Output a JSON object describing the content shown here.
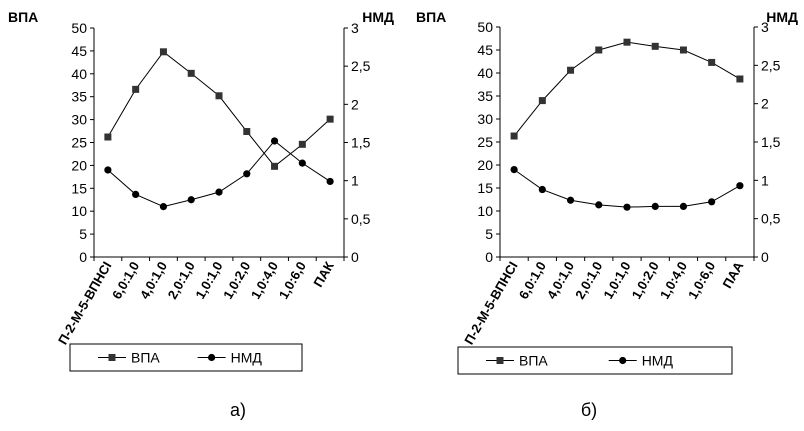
{
  "chart_data": [
    {
      "type": "line",
      "panel_label": "а)",
      "left_axis_title": "ВПА",
      "right_axis_title": "НМД",
      "categories": [
        "П-2-М-5-ВПНСI",
        "6,0:1,0",
        "4,0:1,0",
        "2,0:1,0",
        "1,0:1,0",
        "1,0:2,0",
        "1,0:4,0",
        "1,0:6,0",
        "ПАК"
      ],
      "left_ylim": [
        0,
        50
      ],
      "left_ticks": [
        "0",
        "5",
        "10",
        "15",
        "20",
        "25",
        "30",
        "35",
        "40",
        "45",
        "50"
      ],
      "right_ylim": [
        0,
        3
      ],
      "right_ticks": [
        "0",
        "0,5",
        "1",
        "1,5",
        "2",
        "2,5",
        "3"
      ],
      "grid": false,
      "legend_position": "bottom",
      "series": [
        {
          "name": "ВПА",
          "axis": "left",
          "marker": "square",
          "values": [
            26.2,
            36.6,
            44.8,
            40.1,
            35.2,
            27.4,
            19.8,
            24.6,
            30.1
          ]
        },
        {
          "name": "НМД",
          "axis": "right",
          "marker": "circle",
          "values": [
            1.14,
            0.82,
            0.66,
            0.75,
            0.85,
            1.09,
            1.52,
            1.23,
            0.99
          ]
        }
      ]
    },
    {
      "type": "line",
      "panel_label": "б)",
      "left_axis_title": "ВПА",
      "right_axis_title": "НМД",
      "categories": [
        "П-2-М-5-ВПНСI",
        "6,0:1,0",
        "4,0:1,0",
        "2,0:1,0",
        "1,0:1,0",
        "1,0:2,0",
        "1,0:4,0",
        "1,0:6,0",
        "ПАА"
      ],
      "left_ylim": [
        0,
        50
      ],
      "left_ticks": [
        "0",
        "5",
        "10",
        "15",
        "20",
        "25",
        "30",
        "35",
        "40",
        "45",
        "50"
      ],
      "right_ylim": [
        0,
        3
      ],
      "right_ticks": [
        "0",
        "0,5",
        "1",
        "1,5",
        "2",
        "2,5",
        "3"
      ],
      "grid": false,
      "legend_position": "bottom",
      "series": [
        {
          "name": "ВПА",
          "axis": "left",
          "marker": "square",
          "values": [
            26.3,
            34.0,
            40.6,
            45.0,
            46.7,
            45.8,
            45.0,
            42.3,
            38.7
          ]
        },
        {
          "name": "НМД",
          "axis": "right",
          "marker": "circle",
          "values": [
            1.14,
            0.88,
            0.74,
            0.68,
            0.65,
            0.66,
            0.66,
            0.72,
            0.93
          ]
        }
      ]
    }
  ]
}
